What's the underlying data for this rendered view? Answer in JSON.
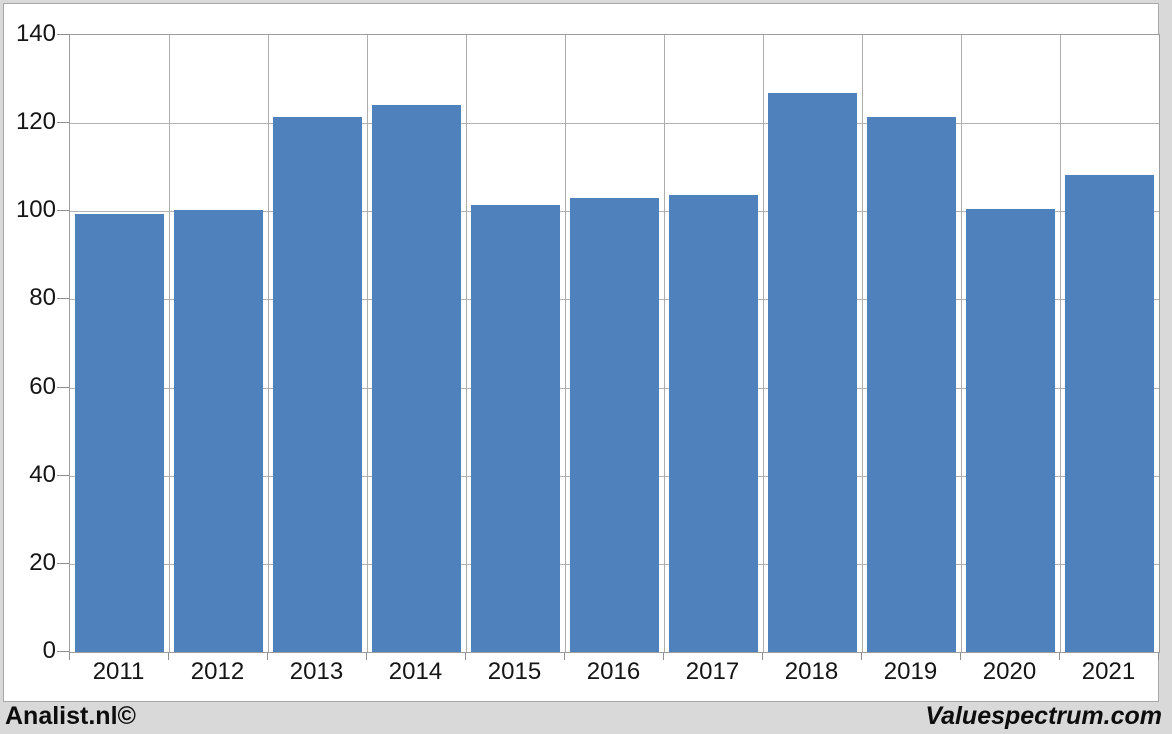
{
  "branding": {
    "left": "Analist.nl©",
    "right": "Valuespectrum.com"
  },
  "chart_data": {
    "type": "bar",
    "title": "",
    "xlabel": "",
    "ylabel": "",
    "categories": [
      "2011",
      "2012",
      "2013",
      "2014",
      "2015",
      "2016",
      "2017",
      "2018",
      "2019",
      "2020",
      "2021"
    ],
    "values": [
      99.3,
      100.4,
      121.5,
      124.2,
      101.4,
      103.1,
      103.7,
      126.8,
      121.4,
      100.6,
      108.3
    ],
    "ylim": [
      0,
      140
    ],
    "ytick_step": 20,
    "ytick_labels": [
      "0",
      "20",
      "40",
      "60",
      "80",
      "100",
      "120",
      "140"
    ],
    "grid": true,
    "legend": "none",
    "colors": {
      "bar": "#4f81bd",
      "gridline": "#b3b3b3",
      "axis": "#8f8f8f",
      "plot_border": "#9d9d9d",
      "panel_background": "#ffffff",
      "canvas_background": "#d9d9d9",
      "text": "#151515"
    }
  }
}
